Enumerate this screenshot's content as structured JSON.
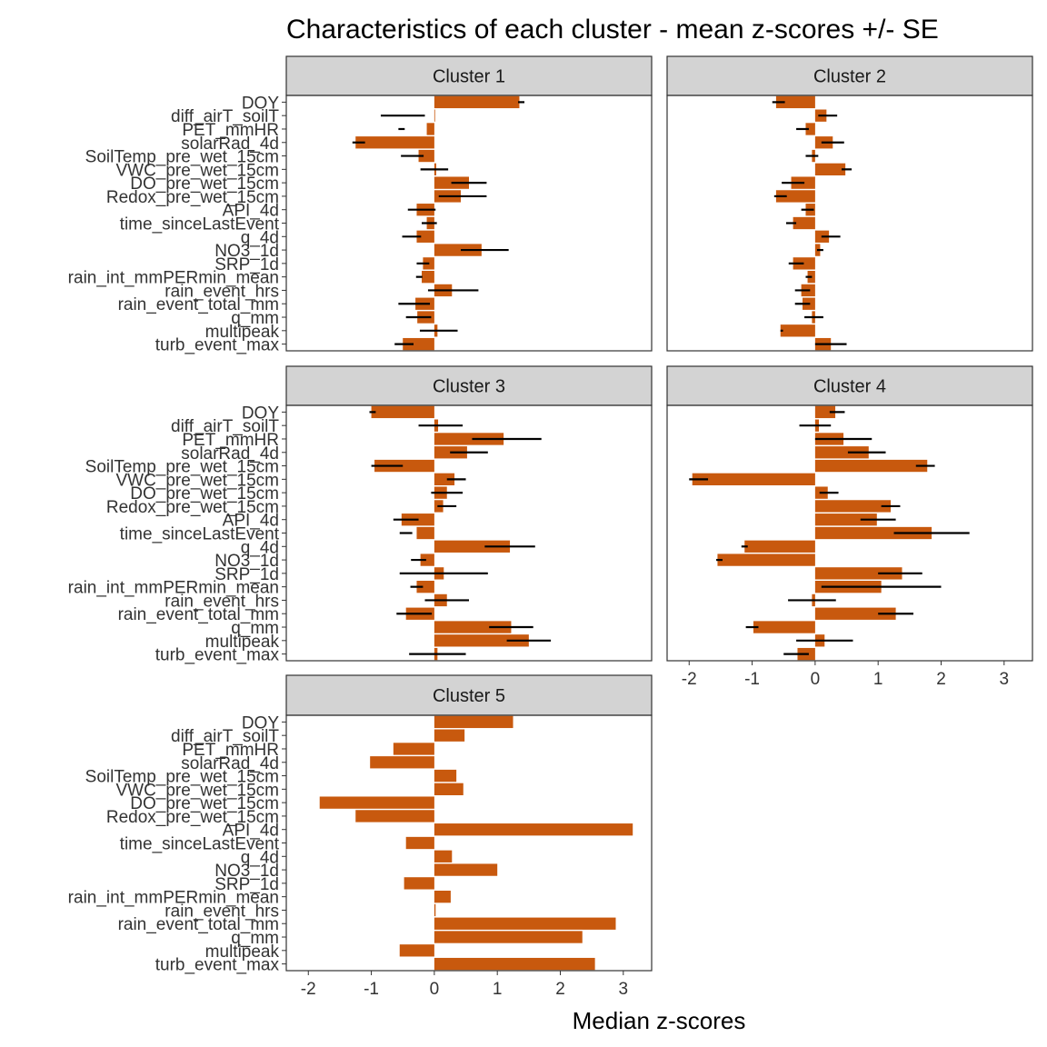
{
  "chart_data": {
    "type": "bar",
    "orientation": "horizontal",
    "title": "Characteristics of each cluster - mean z-scores +/- SE",
    "xlabel": "Median z-scores",
    "ylabel": "",
    "xlim": [
      -2.35,
      3.45
    ],
    "xticks": [
      -2,
      -1,
      0,
      1,
      2,
      3
    ],
    "xtick_labels": [
      "-2",
      "-1",
      "0",
      "1",
      "2",
      "3"
    ],
    "bar_color": "#c8590e",
    "variables": [
      "DOY",
      "diff_airT_soilT",
      "PET_mmHR",
      "solarRad_4d",
      "SoilTemp_pre_wet_15cm",
      "VWC_pre_wet_15cm",
      "DO_pre_wet_15cm",
      "Redox_pre_wet_15cm",
      "API_4d",
      "time_sinceLastEvent",
      "q_4d",
      "NO3_1d",
      "SRP_1d",
      "rain_int_mmPERmin_mean",
      "rain_event_hrs",
      "rain_event_total_mm",
      "q_mm",
      "multipeak",
      "turb_event_max"
    ],
    "facets": [
      {
        "label": "Cluster 1",
        "values": [
          1.35,
          0.0,
          -0.12,
          -1.25,
          -0.25,
          0.03,
          0.55,
          0.42,
          -0.28,
          -0.12,
          -0.28,
          0.75,
          -0.18,
          -0.2,
          0.28,
          -0.3,
          -0.27,
          0.05,
          -0.5
        ],
        "se": [
          0.05,
          0.35,
          0.05,
          0.1,
          0.18,
          0.22,
          0.28,
          0.38,
          0.22,
          0.12,
          0.15,
          0.38,
          0.1,
          0.05,
          0.4,
          0.25,
          0.2,
          0.3,
          0.15
        ],
        "mean": [
          1.38,
          -0.5,
          -0.52,
          -1.2,
          -0.35,
          0.0,
          0.55,
          0.45,
          -0.2,
          -0.08,
          -0.36,
          0.8,
          -0.18,
          -0.24,
          0.3,
          -0.32,
          -0.25,
          0.07,
          -0.48
        ]
      },
      {
        "label": "Cluster 2",
        "values": [
          -0.62,
          0.18,
          -0.15,
          0.28,
          -0.05,
          0.48,
          -0.38,
          -0.62,
          -0.15,
          -0.35,
          0.22,
          0.08,
          -0.35,
          -0.12,
          -0.22,
          -0.2,
          -0.05,
          -0.55,
          0.25
        ],
        "se": [
          0.1,
          0.15,
          0.1,
          0.18,
          0.1,
          0.08,
          0.18,
          0.1,
          0.1,
          0.08,
          0.15,
          0.05,
          0.12,
          0.05,
          0.12,
          0.12,
          0.15,
          0.02,
          0.25
        ],
        "mean": [
          -0.58,
          0.2,
          -0.2,
          0.28,
          -0.05,
          0.5,
          -0.35,
          -0.55,
          -0.12,
          -0.38,
          0.25,
          0.08,
          -0.3,
          -0.1,
          -0.2,
          -0.2,
          -0.02,
          -0.53,
          0.25
        ]
      },
      {
        "label": "Cluster 3",
        "values": [
          -1.0,
          0.06,
          1.1,
          0.52,
          -0.95,
          0.32,
          0.2,
          0.14,
          -0.52,
          -0.28,
          1.2,
          -0.22,
          0.15,
          -0.28,
          0.2,
          -0.45,
          1.22,
          1.5,
          0.05
        ],
        "se": [
          0.05,
          0.35,
          0.55,
          0.3,
          0.25,
          0.15,
          0.25,
          0.15,
          0.2,
          0.1,
          0.4,
          0.12,
          0.7,
          0.1,
          0.35,
          0.28,
          0.35,
          0.35,
          0.45
        ],
        "mean": [
          -0.98,
          0.1,
          1.15,
          0.55,
          -0.75,
          0.35,
          0.2,
          0.2,
          -0.45,
          -0.45,
          1.2,
          -0.25,
          0.15,
          -0.28,
          0.2,
          -0.32,
          1.22,
          1.5,
          0.05
        ]
      },
      {
        "label": "Cluster 4",
        "values": [
          0.32,
          0.06,
          0.45,
          0.85,
          1.78,
          -1.95,
          0.2,
          1.2,
          0.98,
          1.85,
          -1.12,
          -1.55,
          1.38,
          1.05,
          -0.05,
          1.28,
          -0.98,
          0.15,
          -0.28
        ],
        "se": [
          0.12,
          0.25,
          0.45,
          0.3,
          0.15,
          0.15,
          0.15,
          0.15,
          0.28,
          0.6,
          0.05,
          0.05,
          0.35,
          0.95,
          0.38,
          0.28,
          0.1,
          0.45,
          0.2
        ],
        "mean": [
          0.35,
          0.0,
          0.45,
          0.82,
          1.75,
          -1.85,
          0.22,
          1.2,
          1.0,
          1.85,
          -1.12,
          -1.52,
          1.35,
          1.05,
          -0.05,
          1.28,
          -1.0,
          0.15,
          -0.3
        ]
      },
      {
        "label": "Cluster 5",
        "values": [
          1.25,
          0.48,
          -0.65,
          -1.02,
          0.35,
          0.46,
          -1.82,
          -1.25,
          3.15,
          -0.45,
          0.28,
          1.0,
          -0.48,
          0.26,
          0.02,
          2.88,
          2.35,
          -0.55,
          2.55
        ],
        "se": null,
        "mean": null
      }
    ]
  }
}
